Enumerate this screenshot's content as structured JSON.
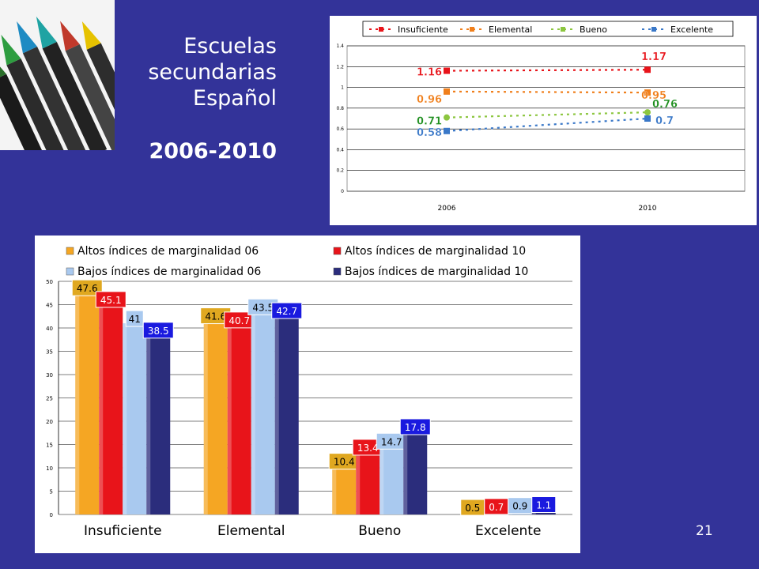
{
  "slide": {
    "title_lines": [
      "Escuelas",
      "secundarias",
      "Español"
    ],
    "years": "2006-2010",
    "page_number": "21"
  },
  "colors": {
    "background": "#333399",
    "insuficiente": "#e8141a",
    "elemental": "#f07f1b",
    "bueno": "#8cc63f",
    "excelente": "#3a78c8",
    "altos_06": "#f5a623",
    "altos_10": "#e8141a",
    "bajos_06": "#a9c9ef",
    "bajos_10": "#2b2d7c"
  },
  "chart_data": [
    {
      "type": "line",
      "x": [
        "2006",
        "2010"
      ],
      "ylim": [
        0,
        1.4
      ],
      "yticks": [
        "0",
        "0.2",
        "0.4",
        "0.6",
        "0.8",
        "1",
        "1.2",
        "1.4"
      ],
      "grid": true,
      "legend_position": "top",
      "series": [
        {
          "name": "Insuficiente",
          "values": [
            1.16,
            1.17
          ],
          "labels": [
            "1.16",
            "1.17"
          ]
        },
        {
          "name": "Elemental",
          "values": [
            0.96,
            0.95
          ],
          "labels": [
            "0.96",
            "0.95"
          ]
        },
        {
          "name": "Bueno",
          "values": [
            0.71,
            0.76
          ],
          "labels": [
            "0.71",
            "0.76"
          ]
        },
        {
          "name": "Excelente",
          "values": [
            0.58,
            0.7
          ],
          "labels": [
            "0.58",
            "0.7"
          ]
        }
      ]
    },
    {
      "type": "bar",
      "categories": [
        "Insuficiente",
        "Elemental",
        "Bueno",
        "Excelente"
      ],
      "ylim": [
        0,
        50
      ],
      "yticks": [
        "0",
        "5",
        "10",
        "15",
        "20",
        "25",
        "30",
        "35",
        "40",
        "45",
        "50"
      ],
      "grid": true,
      "legend_position": "top",
      "series": [
        {
          "name": "Altos índices de marginalidad 06",
          "values": [
            47.6,
            41.6,
            10.4,
            0.5
          ],
          "labels": [
            "47.6",
            "41.6",
            "10.4",
            "0.5"
          ]
        },
        {
          "name": "Altos índices de marginalidad 10",
          "values": [
            45.1,
            40.7,
            13.4,
            0.7
          ],
          "labels": [
            "45.1",
            "40.7",
            "13.4",
            "0.7"
          ]
        },
        {
          "name": "Bajos índices de marginalidad 06",
          "values": [
            41,
            43.5,
            14.7,
            0.9
          ],
          "labels": [
            "41",
            "43.5",
            "14.7",
            "0.9"
          ]
        },
        {
          "name": "Bajos índices de marginalidad 10",
          "values": [
            38.5,
            42.7,
            17.8,
            1.1
          ],
          "labels": [
            "38.5",
            "42.7",
            "17.8",
            "1.1"
          ]
        }
      ]
    }
  ]
}
